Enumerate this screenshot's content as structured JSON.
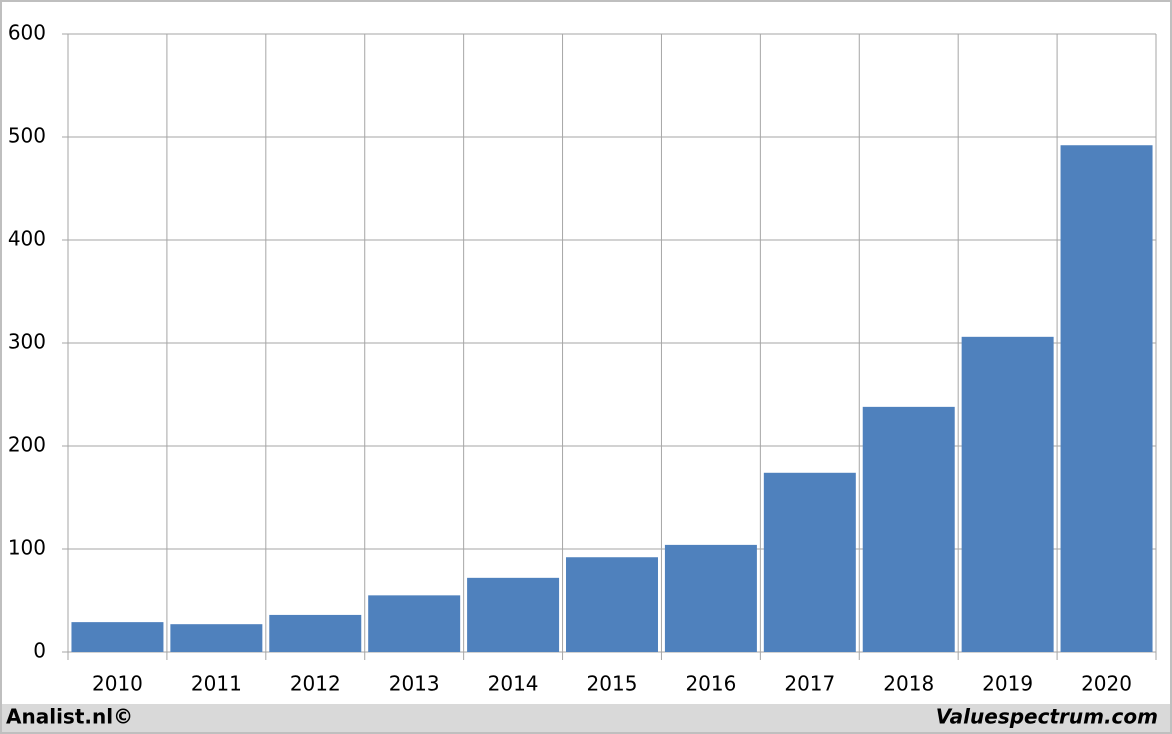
{
  "chart_data": {
    "type": "bar",
    "categories": [
      "2010",
      "2011",
      "2012",
      "2013",
      "2014",
      "2015",
      "2016",
      "2017",
      "2018",
      "2019",
      "2020"
    ],
    "values": [
      29,
      27,
      36,
      55,
      72,
      92,
      104,
      174,
      238,
      306,
      492
    ],
    "color": "#4f81bd",
    "ylim": [
      0,
      600
    ],
    "yticks": [
      0,
      100,
      200,
      300,
      400,
      500,
      600
    ],
    "grid": true
  },
  "footer": {
    "left": "Analist.nl©",
    "right": "Valuespectrum.com"
  }
}
